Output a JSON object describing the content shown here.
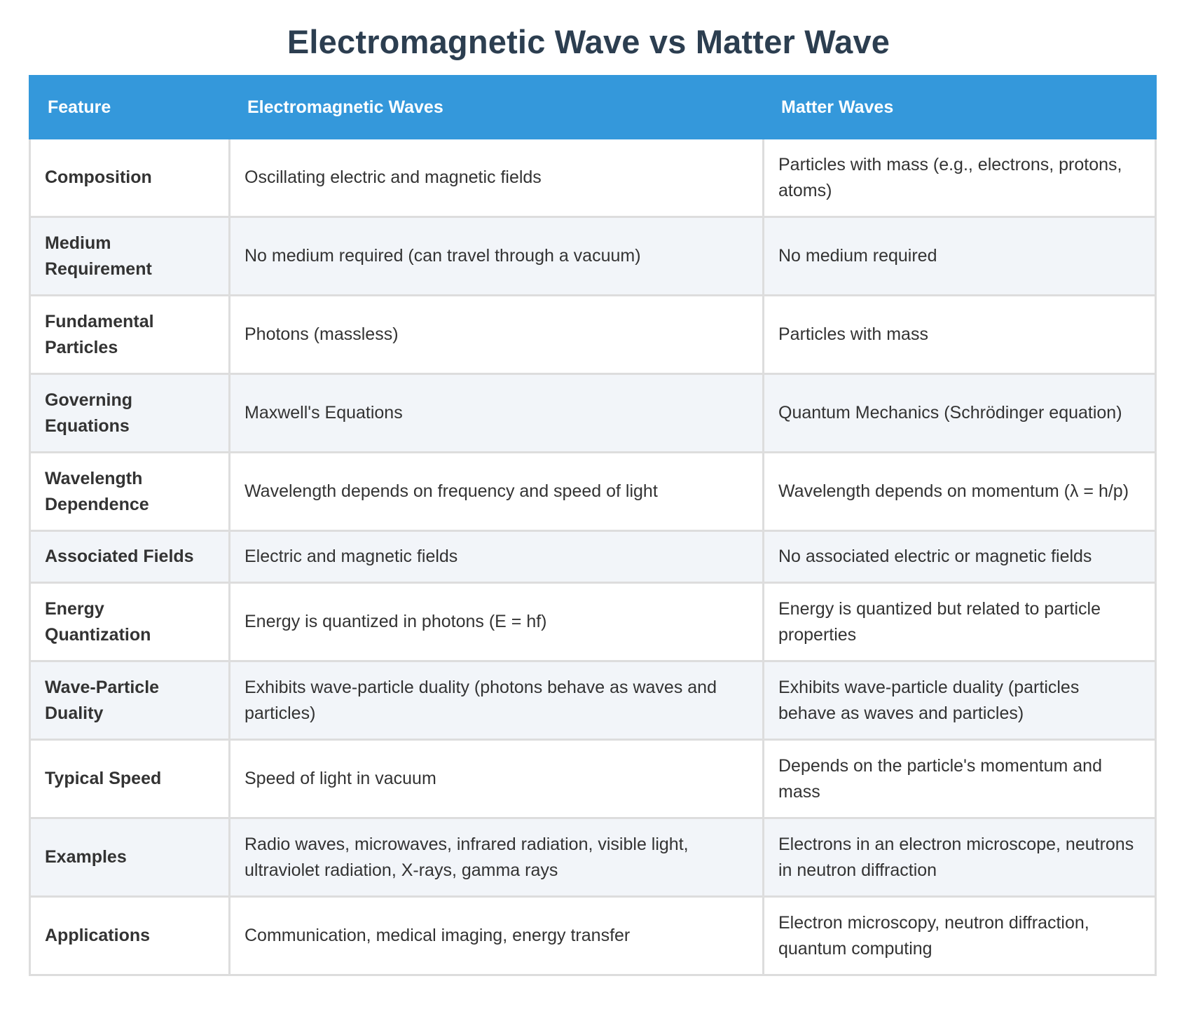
{
  "title": "Electromagnetic Wave vs Matter Wave",
  "table": {
    "headers": {
      "feature": "Feature",
      "em": "Electromagnetic Waves",
      "matter": "Matter Waves"
    },
    "rows": [
      {
        "feature": "Composition",
        "em": "Oscillating electric and magnetic fields",
        "matter": "Particles with mass (e.g., electrons, protons, atoms)"
      },
      {
        "feature": "Medium Requirement",
        "em": "No medium required (can travel through a vacuum)",
        "matter": "No medium required"
      },
      {
        "feature": "Fundamental Particles",
        "em": "Photons (massless)",
        "matter": "Particles with mass"
      },
      {
        "feature": "Governing Equations",
        "em": "Maxwell's Equations",
        "matter": "Quantum Mechanics (Schrödinger equation)"
      },
      {
        "feature": "Wavelength Dependence",
        "em": "Wavelength depends on frequency and speed of light",
        "matter": "Wavelength depends on momentum (λ = h/p)"
      },
      {
        "feature": "Associated Fields",
        "em": "Electric and magnetic fields",
        "matter": "No associated electric or magnetic fields"
      },
      {
        "feature": "Energy Quantization",
        "em": "Energy is quantized in photons (E = hf)",
        "matter": "Energy is quantized but related to particle properties"
      },
      {
        "feature": "Wave-Particle Duality",
        "em": "Exhibits wave-particle duality (photons behave as waves and particles)",
        "matter": "Exhibits wave-particle duality (particles behave as waves and particles)"
      },
      {
        "feature": "Typical Speed",
        "em": "Speed of light in vacuum",
        "matter": "Depends on the particle's momentum and mass"
      },
      {
        "feature": "Examples",
        "em": "Radio waves, microwaves, infrared radiation, visible light, ultraviolet radiation, X-rays, gamma rays",
        "matter": "Electrons in an electron microscope, neutrons in neutron diffraction"
      },
      {
        "feature": "Applications",
        "em": "Communication, medical imaging, energy transfer",
        "matter": "Electron microscopy, neutron diffraction, quantum computing"
      }
    ]
  }
}
